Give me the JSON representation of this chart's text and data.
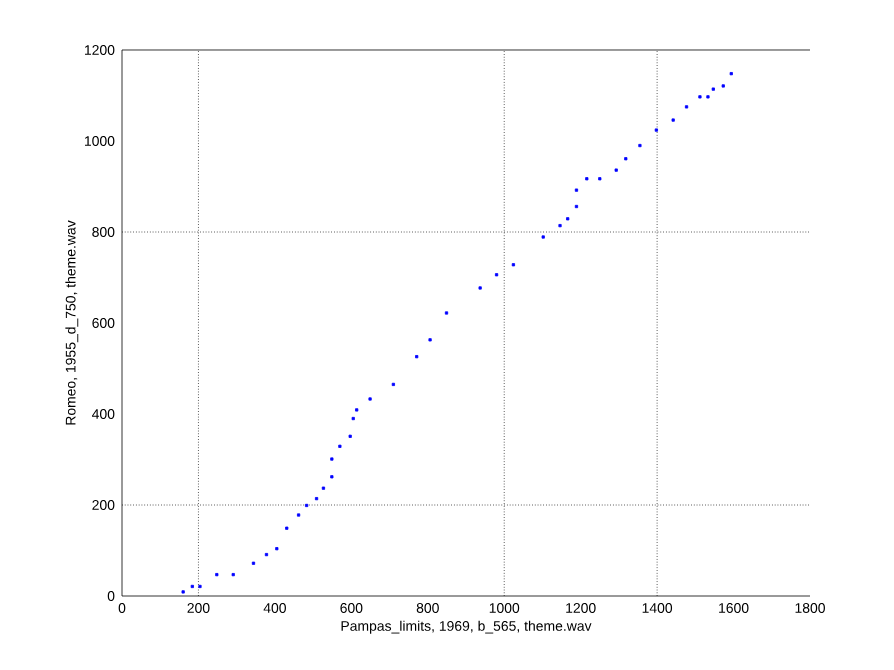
{
  "chart_data": {
    "type": "scatter",
    "xlabel": "Pampas_limits, 1969, b_565, theme.wav",
    "ylabel": "Romeo, 1955_d_750, theme.wav",
    "xlim": [
      0,
      1800
    ],
    "ylim": [
      0,
      1200
    ],
    "xticks": [
      0,
      200,
      400,
      600,
      800,
      1000,
      1200,
      1400,
      1600,
      1800
    ],
    "yticks": [
      0,
      200,
      400,
      600,
      800,
      1000,
      1200
    ],
    "marker": "square",
    "ref_lines": [
      {
        "axis": "x",
        "value": 200,
        "color": "#000000",
        "line_style": "dotted"
      },
      {
        "axis": "x",
        "value": 1000,
        "color": "#000000",
        "line_style": "dotted"
      },
      {
        "axis": "x",
        "value": 1400,
        "color": "#000000",
        "line_style": "dotted"
      },
      {
        "axis": "y",
        "value": 200,
        "color": "#000000",
        "line_style": "dotted"
      },
      {
        "axis": "y",
        "value": 800,
        "color": "#000000",
        "line_style": "dotted"
      }
    ],
    "series": [
      {
        "color": "#0000ff",
        "x": [
          160,
          184,
          204,
          248,
          291,
          344,
          378,
          405,
          431,
          462,
          483,
          509,
          527,
          549,
          549,
          570,
          597,
          605,
          614,
          649,
          710,
          771,
          806,
          849,
          937,
          980,
          1024,
          1102,
          1146,
          1166,
          1189,
          1189,
          1216,
          1250,
          1293,
          1318,
          1355,
          1398,
          1442,
          1477,
          1512,
          1533,
          1547,
          1573,
          1594
        ],
        "values": [
          9,
          21,
          21,
          47,
          47,
          72,
          91,
          104,
          149,
          178,
          199,
          214,
          237,
          262,
          301,
          329,
          351,
          390,
          409,
          433,
          465,
          526,
          563,
          622,
          677,
          706,
          728,
          789,
          814,
          829,
          856,
          892,
          917,
          917,
          936,
          961,
          990,
          1024,
          1046,
          1075,
          1097,
          1097,
          1114,
          1121,
          1148
        ]
      }
    ]
  }
}
